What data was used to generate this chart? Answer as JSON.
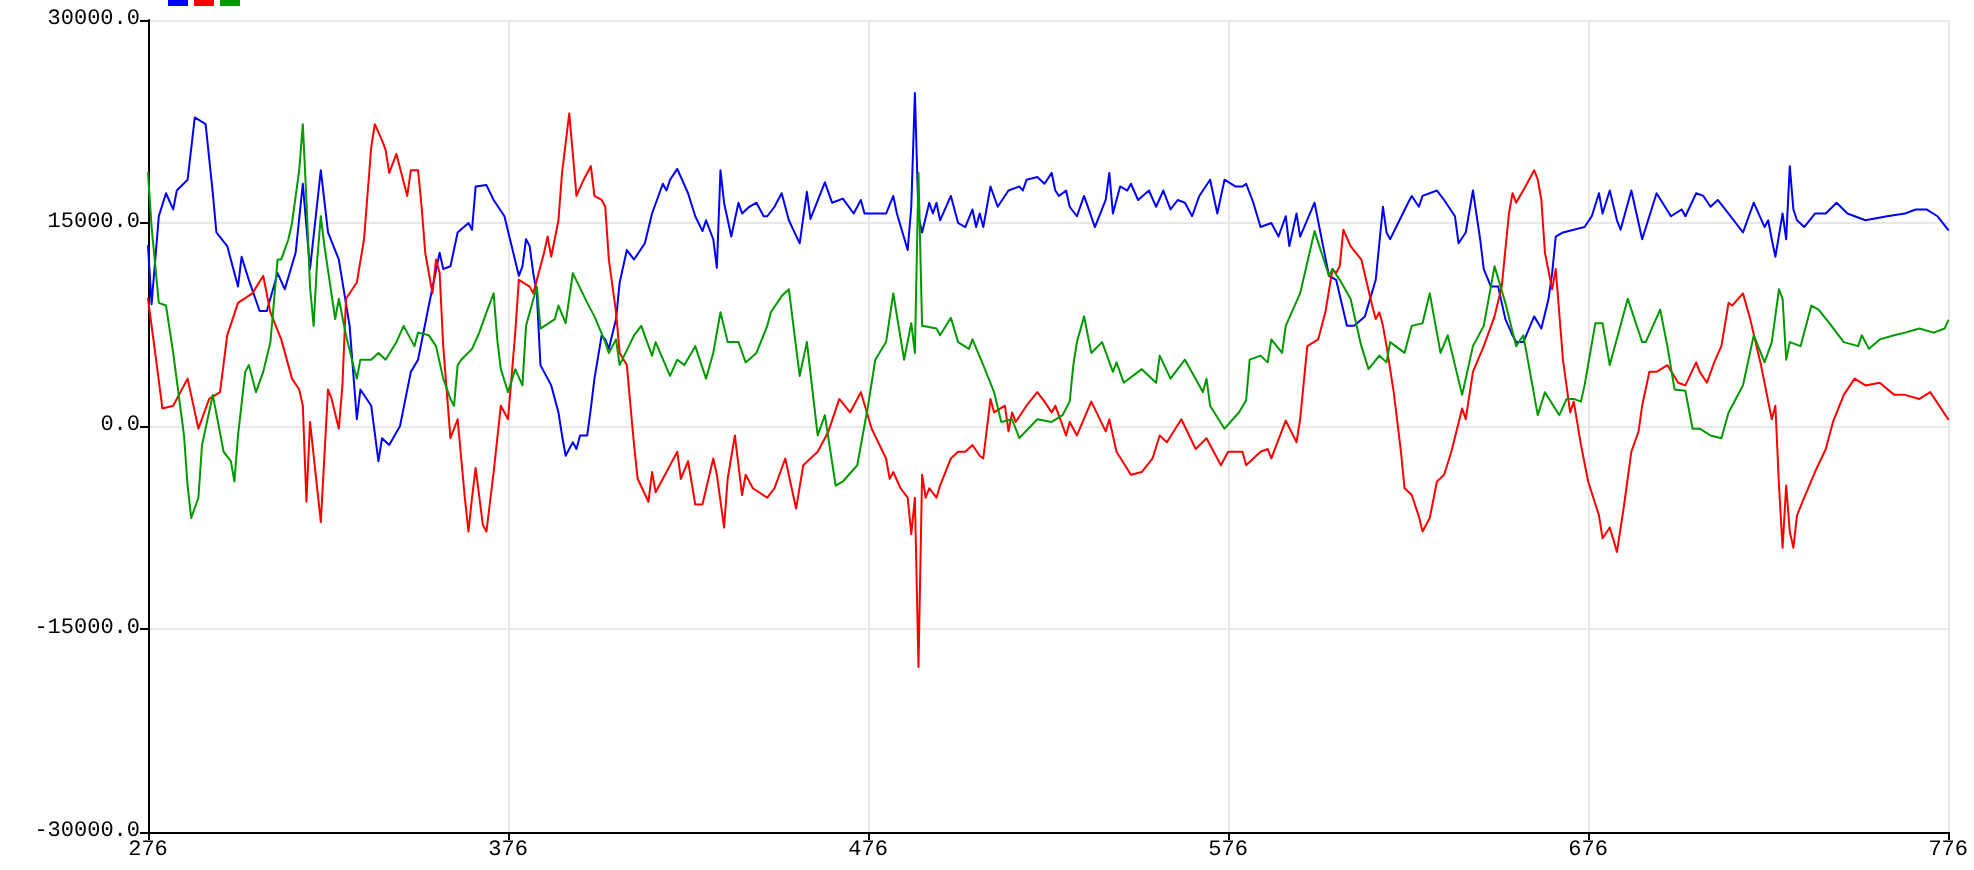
{
  "chart_data": {
    "type": "line",
    "xlim": [
      276,
      776
    ],
    "xticks": [
      276,
      376,
      476,
      576,
      676,
      776
    ],
    "ylim": [
      -30000,
      30000
    ],
    "yticks": [
      {
        "value": -30000,
        "label": "-30000.0"
      },
      {
        "value": -15000,
        "label": "-15000.0"
      },
      {
        "value": 0,
        "label": "0.0"
      },
      {
        "value": 15000,
        "label": "15000.0"
      },
      {
        "value": 30000,
        "label": "30000.0"
      }
    ],
    "grid": true,
    "marker": "none",
    "line_style": "solid",
    "series": [
      {
        "color": "#0000ff",
        "x": [
          276,
          277,
          279,
          281,
          283,
          284,
          287,
          289,
          292,
          294,
          295,
          298,
          301,
          302,
          304,
          307,
          309,
          312,
          314,
          317,
          319,
          321,
          324,
          326,
          329,
          332,
          334,
          335,
          338,
          340,
          341,
          343,
          346,
          349,
          351,
          354,
          357,
          358,
          360,
          362,
          365,
          366,
          367,
          370,
          372,
          375,
          377,
          379,
          380,
          381,
          382,
          383,
          384,
          385,
          387,
          388,
          390,
          391,
          392,
          394,
          395,
          396,
          398,
          399,
          400,
          402,
          403,
          404,
          406,
          407,
          409,
          411,
          414,
          416,
          419,
          420,
          421,
          423,
          426,
          428,
          430,
          431,
          433,
          434,
          435,
          436,
          438,
          440,
          441,
          443,
          445,
          447,
          448,
          450,
          452,
          454,
          457,
          459,
          460,
          464,
          466,
          469,
          472,
          474,
          475,
          478,
          481,
          483,
          484,
          487,
          488,
          489,
          490,
          491,
          493,
          494,
          495,
          496,
          499,
          501,
          503,
          505,
          506,
          507,
          508,
          510,
          512,
          515,
          518,
          519,
          520,
          523,
          525,
          527,
          528,
          529,
          531,
          532,
          534,
          536,
          539,
          542,
          543,
          544,
          546,
          548,
          549,
          551,
          554,
          556,
          558,
          560,
          562,
          564,
          566,
          568,
          571,
          573,
          575,
          578,
          580,
          581,
          583,
          585,
          588,
          590,
          592,
          593,
          595,
          596,
          600,
          602,
          604,
          606,
          609,
          611,
          614,
          617,
          619,
          620,
          621,
          626,
          627,
          629,
          630,
          634,
          636,
          639,
          640,
          642,
          644,
          646,
          647,
          649,
          651,
          653,
          655,
          656,
          658,
          661,
          663,
          665,
          666,
          667,
          669,
          672,
          675,
          677,
          679,
          680,
          682,
          684,
          685,
          688,
          691,
          695,
          699,
          702,
          703,
          706,
          708,
          710,
          712,
          715,
          717,
          719,
          722,
          725,
          726,
          727,
          728,
          730,
          731,
          732,
          733,
          734,
          736,
          739,
          742,
          745,
          748,
          753,
          759,
          764,
          767,
          770,
          773,
          776
        ],
        "values": [
          13300,
          9000,
          15500,
          17200,
          16000,
          17400,
          18200,
          22800,
          22300,
          17200,
          14300,
          13300,
          10300,
          12500,
          10800,
          8500,
          8500,
          11300,
          10100,
          12800,
          17900,
          11600,
          18900,
          14300,
          12300,
          7400,
          500,
          2700,
          1500,
          -2600,
          -900,
          -1400,
          0,
          4000,
          4900,
          8900,
          12800,
          11600,
          11800,
          14300,
          15000,
          14500,
          17700,
          17800,
          16700,
          15500,
          13300,
          11100,
          11800,
          13800,
          13300,
          11300,
          9800,
          4500,
          3500,
          3000,
          1000,
          -700,
          -2200,
          -1200,
          -1700,
          -700,
          -700,
          1300,
          3500,
          6700,
          6400,
          5700,
          7900,
          10600,
          13000,
          12300,
          13500,
          15700,
          17900,
          17400,
          18200,
          19000,
          17200,
          15500,
          14400,
          15200,
          13800,
          11700,
          18900,
          16500,
          14000,
          16500,
          15700,
          16200,
          16500,
          15500,
          15500,
          16200,
          17200,
          15200,
          13500,
          17300,
          15300,
          18000,
          16500,
          16800,
          15700,
          16700,
          15700,
          15700,
          15700,
          17000,
          15700,
          13000,
          16200,
          24600,
          15500,
          14300,
          16500,
          15700,
          16500,
          15200,
          17000,
          15000,
          14700,
          16000,
          14700,
          15700,
          14700,
          17700,
          16200,
          17400,
          17700,
          17400,
          18200,
          18400,
          17900,
          18700,
          17400,
          17000,
          17400,
          16200,
          15500,
          17000,
          14700,
          16700,
          18700,
          15700,
          17700,
          17400,
          17900,
          16700,
          17400,
          16200,
          17400,
          16000,
          16700,
          16500,
          15500,
          17000,
          18200,
          15700,
          18200,
          17700,
          17700,
          17900,
          16500,
          14700,
          15000,
          14000,
          15500,
          13300,
          15700,
          14000,
          16500,
          13800,
          11100,
          10800,
          7400,
          7400,
          8100,
          10800,
          16200,
          14300,
          13800,
          16500,
          17000,
          16200,
          17000,
          17400,
          16700,
          15500,
          13500,
          14300,
          17400,
          13800,
          11600,
          10300,
          10300,
          7900,
          6700,
          6200,
          6200,
          8100,
          7200,
          9400,
          11300,
          14000,
          14300,
          14500,
          14700,
          15500,
          17200,
          15700,
          17400,
          15200,
          14500,
          17400,
          13800,
          17200,
          15500,
          16000,
          15500,
          17200,
          17000,
          16200,
          16700,
          15700,
          15000,
          14300,
          16500,
          14700,
          15200,
          13800,
          12500,
          15700,
          13800,
          19200,
          16000,
          15200,
          14700,
          15700,
          15700,
          16500,
          15700,
          15200,
          15500,
          15700,
          16000,
          16000,
          15500,
          14500
        ]
      },
      {
        "color": "#ff0000",
        "x": [
          276,
          278,
          280,
          283,
          287,
          290,
          293,
          296,
          298,
          301,
          305,
          308,
          310,
          313,
          316,
          318,
          319,
          320,
          321,
          324,
          326,
          327,
          329,
          330,
          331,
          334,
          336,
          338,
          339,
          341,
          342,
          343,
          345,
          348,
          349,
          351,
          352,
          353,
          355,
          356,
          357,
          358,
          360,
          362,
          364,
          365,
          366,
          367,
          369,
          370,
          372,
          374,
          376,
          378,
          379,
          382,
          383,
          386,
          387,
          388,
          390,
          391,
          393,
          394,
          395,
          397,
          399,
          400,
          402,
          403,
          404,
          406,
          407,
          409,
          410,
          411,
          412,
          415,
          416,
          417,
          420,
          423,
          424,
          426,
          428,
          430,
          433,
          434,
          436,
          437,
          439,
          441,
          442,
          444,
          448,
          450,
          453,
          456,
          458,
          462,
          465,
          468,
          471,
          474,
          477,
          481,
          482,
          483,
          485,
          487,
          488,
          489,
          490,
          491,
          492,
          493,
          495,
          496,
          499,
          501,
          503,
          505,
          507,
          508,
          510,
          511,
          514,
          515,
          516,
          517,
          520,
          523,
          525,
          527,
          528,
          531,
          532,
          534,
          538,
          542,
          543,
          545,
          549,
          552,
          555,
          557,
          559,
          563,
          567,
          570,
          574,
          576,
          580,
          581,
          585,
          587,
          588,
          592,
          595,
          596,
          598,
          601,
          603,
          605,
          606,
          607,
          608,
          610,
          613,
          616,
          617,
          618,
          619,
          620,
          622,
          624,
          625,
          627,
          629,
          630,
          632,
          634,
          636,
          638,
          641,
          642,
          644,
          647,
          650,
          652,
          654,
          655,
          656,
          659,
          661,
          662,
          663,
          664,
          666,
          667,
          669,
          671,
          672,
          674,
          676,
          679,
          680,
          682,
          684,
          686,
          688,
          690,
          691,
          693,
          695,
          698,
          701,
          703,
          706,
          707,
          709,
          711,
          713,
          715,
          716,
          719,
          721,
          724,
          727,
          728,
          729,
          730,
          731,
          732,
          733,
          734,
          736,
          739,
          742,
          744,
          747,
          750,
          753,
          757,
          761,
          764,
          768,
          771,
          774,
          776
        ],
        "values": [
          9400,
          5400,
          1300,
          1500,
          3500,
          -200,
          2000,
          2500,
          6700,
          9100,
          9800,
          11100,
          8400,
          6400,
          3500,
          2700,
          1500,
          -5600,
          300,
          -7100,
          2700,
          2000,
          -200,
          3000,
          9400,
          10600,
          13800,
          20600,
          22300,
          21100,
          20400,
          18700,
          20100,
          17000,
          18900,
          18900,
          16200,
          12800,
          9800,
          12300,
          11300,
          5900,
          -900,
          500,
          -5300,
          -7800,
          -5300,
          -3100,
          -7300,
          -7800,
          -3400,
          1500,
          500,
          6900,
          10800,
          10300,
          9800,
          12800,
          14000,
          12500,
          15200,
          18700,
          23100,
          20100,
          17000,
          18200,
          19200,
          17000,
          16700,
          16200,
          12300,
          8400,
          5400,
          4500,
          1500,
          -1400,
          -3900,
          -5600,
          -3400,
          -4900,
          -3400,
          -1900,
          -3900,
          -2600,
          -5800,
          -5800,
          -2400,
          -3600,
          -7500,
          -3900,
          -700,
          -5100,
          -3600,
          -4600,
          -5300,
          -4600,
          -2400,
          -6100,
          -2900,
          -1900,
          -400,
          2000,
          1000,
          2500,
          -200,
          -2400,
          -3900,
          -3400,
          -4600,
          -5300,
          -8000,
          -5300,
          -17800,
          -3600,
          -5300,
          -4600,
          -5300,
          -4400,
          -2400,
          -1900,
          -1900,
          -1400,
          -2200,
          -2400,
          2000,
          1000,
          1500,
          -400,
          1000,
          300,
          1500,
          2500,
          1800,
          1000,
          1500,
          -700,
          300,
          -700,
          1800,
          -400,
          500,
          -1900,
          -3600,
          -3400,
          -2400,
          -700,
          -1200,
          500,
          -1700,
          -900,
          -2900,
          -1900,
          -1900,
          -2900,
          -1900,
          -1700,
          -2400,
          400,
          -1200,
          500,
          5900,
          6400,
          8400,
          11600,
          11300,
          11800,
          14500,
          13300,
          12300,
          8900,
          7900,
          8400,
          7400,
          5900,
          2500,
          -1900,
          -4600,
          -5100,
          -6700,
          -7800,
          -6800,
          -4100,
          -3600,
          -1900,
          1300,
          500,
          4000,
          5900,
          8100,
          10300,
          15700,
          17200,
          16500,
          17900,
          18900,
          18200,
          16700,
          12800,
          10100,
          11600,
          4900,
          1000,
          1800,
          -1400,
          -4100,
          -6600,
          -8300,
          -7500,
          -9300,
          -5800,
          -1900,
          -400,
          1500,
          4000,
          4000,
          4500,
          3200,
          3000,
          4700,
          4000,
          3200,
          4700,
          5900,
          9100,
          8900,
          9800,
          7900,
          4500,
          500,
          1500,
          -4400,
          -9000,
          -4400,
          -7800,
          -9000,
          -6600,
          -5300,
          -3400,
          -1700,
          300,
          2300,
          3500,
          3000,
          3200,
          2300,
          2300,
          2000,
          2500,
          1300,
          500
        ]
      },
      {
        "color": "#009900",
        "x": [
          276,
          277,
          279,
          281,
          283,
          286,
          287,
          288,
          290,
          291,
          294,
          297,
          299,
          300,
          301,
          303,
          304,
          306,
          308,
          310,
          312,
          313,
          315,
          316,
          318,
          319,
          320,
          321,
          322,
          323,
          324,
          325,
          328,
          329,
          331,
          333,
          334,
          335,
          338,
          340,
          342,
          345,
          347,
          350,
          351,
          354,
          356,
          358,
          360,
          361,
          362,
          363,
          366,
          368,
          370,
          372,
          373,
          374,
          376,
          378,
          380,
          381,
          384,
          385,
          389,
          390,
          392,
          394,
          398,
          400,
          403,
          404,
          406,
          407,
          411,
          413,
          416,
          417,
          421,
          423,
          425,
          428,
          431,
          433,
          435,
          437,
          440,
          442,
          445,
          448,
          449,
          452,
          454,
          457,
          459,
          462,
          464,
          467,
          469,
          473,
          476,
          478,
          481,
          483,
          486,
          488,
          489,
          490,
          491,
          495,
          496,
          499,
          501,
          504,
          505,
          508,
          511,
          513,
          516,
          518,
          523,
          527,
          530,
          532,
          533,
          534,
          536,
          538,
          541,
          544,
          545,
          547,
          552,
          556,
          557,
          560,
          564,
          568,
          569,
          570,
          571,
          575,
          579,
          581,
          582,
          585,
          587,
          588,
          591,
          592,
          594,
          596,
          598,
          600,
          604,
          605,
          607,
          610,
          613,
          615,
          618,
          620,
          621,
          625,
          627,
          630,
          632,
          635,
          637,
          641,
          644,
          647,
          650,
          653,
          656,
          658,
          662,
          664,
          668,
          670,
          672,
          674,
          675,
          678,
          680,
          682,
          687,
          691,
          692,
          696,
          698,
          700,
          703,
          705,
          706,
          707,
          710,
          713,
          715,
          717,
          719,
          722,
          725,
          727,
          729,
          730,
          731,
          732,
          735,
          738,
          740,
          743,
          747,
          751,
          752,
          754,
          757,
          761,
          764,
          768,
          772,
          775,
          776
        ],
        "values": [
          18700,
          14700,
          9100,
          8900,
          5400,
          -700,
          -4400,
          -6800,
          -5300,
          -1400,
          2300,
          -1900,
          -2600,
          -4100,
          -700,
          4000,
          4500,
          2500,
          4000,
          6200,
          12300,
          12300,
          13800,
          15000,
          18900,
          22300,
          16700,
          10300,
          7400,
          12300,
          15500,
          13300,
          7900,
          9400,
          6700,
          4500,
          3500,
          4900,
          4900,
          5400,
          4900,
          6200,
          7400,
          5900,
          6900,
          6700,
          5900,
          3500,
          2000,
          1500,
          4500,
          4900,
          5700,
          6900,
          8400,
          9800,
          6400,
          4200,
          2500,
          4200,
          3000,
          7400,
          10300,
          7200,
          7900,
          8900,
          7600,
          11300,
          9100,
          8100,
          6200,
          5400,
          6400,
          4500,
          6700,
          7400,
          5200,
          6200,
          3700,
          4900,
          4500,
          5900,
          3500,
          5400,
          8400,
          6200,
          6200,
          4700,
          5400,
          7400,
          8400,
          9600,
          10100,
          3700,
          6200,
          -700,
          800,
          -4400,
          -4100,
          -2900,
          1500,
          4900,
          6200,
          9800,
          4900,
          7600,
          5400,
          18700,
          7400,
          7200,
          6700,
          8000,
          6200,
          5700,
          6400,
          4500,
          2500,
          300,
          500,
          -900,
          500,
          300,
          800,
          1800,
          4500,
          6200,
          8100,
          5400,
          6200,
          4000,
          4700,
          3200,
          4200,
          3200,
          5200,
          3500,
          4900,
          3000,
          2500,
          3500,
          1500,
          -200,
          1000,
          1900,
          4900,
          5200,
          4700,
          6400,
          5400,
          7400,
          8600,
          9800,
          12100,
          14400,
          11100,
          11600,
          10800,
          9400,
          5900,
          4200,
          5200,
          4700,
          6200,
          5400,
          7400,
          7600,
          9800,
          5400,
          6700,
          2300,
          5900,
          7400,
          11800,
          9100,
          5900,
          6700,
          800,
          2500,
          800,
          2000,
          2000,
          1800,
          3000,
          7600,
          7600,
          4500,
          9400,
          6200,
          6200,
          8600,
          5900,
          2700,
          2600,
          -200,
          -200,
          -200,
          -700,
          -900,
          1000,
          2000,
          3000,
          6700,
          4700,
          6200,
          10100,
          9400,
          4900,
          6200,
          5900,
          8900,
          8600,
          7600,
          6200,
          5900,
          6700,
          5700,
          6400,
          6700,
          6900,
          7200,
          6900,
          7200,
          7800
        ]
      }
    ]
  }
}
